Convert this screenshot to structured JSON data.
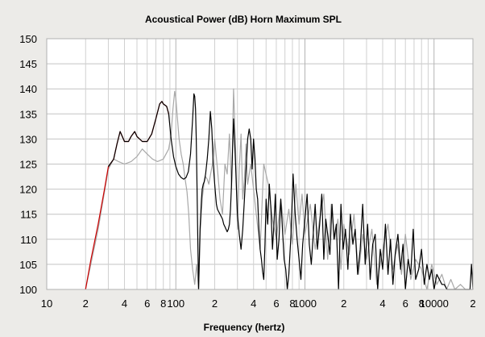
{
  "chart_data": {
    "type": "line",
    "title": "Acoustical Power (dB)   Horn   Maximum SPL",
    "xlabel": "Frequency (hertz)",
    "ylabel": "",
    "xscale": "log",
    "xlim": [
      10,
      20000
    ],
    "ylim": [
      100,
      150
    ],
    "grid": true,
    "y_ticks": [
      100,
      105,
      110,
      115,
      120,
      125,
      130,
      135,
      140,
      145,
      150
    ],
    "x_ticks": [
      {
        "value": 10,
        "label": "10"
      },
      {
        "value": 20,
        "label": "2"
      },
      {
        "value": 40,
        "label": "4"
      },
      {
        "value": 60,
        "label": "6"
      },
      {
        "value": 80,
        "label": "8"
      },
      {
        "value": 100,
        "label": "100"
      },
      {
        "value": 200,
        "label": "2"
      },
      {
        "value": 400,
        "label": "4"
      },
      {
        "value": 600,
        "label": "6"
      },
      {
        "value": 800,
        "label": "8"
      },
      {
        "value": 1000,
        "label": "1000"
      },
      {
        "value": 2000,
        "label": "2"
      },
      {
        "value": 4000,
        "label": "4"
      },
      {
        "value": 6000,
        "label": "6"
      },
      {
        "value": 8000,
        "label": "8"
      },
      {
        "value": 10000,
        "label": "10000"
      },
      {
        "value": 20000,
        "label": "2"
      }
    ],
    "colors": {
      "acoustical_power": "#000000",
      "max_spl": "#cc0000",
      "gray_trace": "#a8a8a8"
    },
    "series": [
      {
        "color": "#a8a8a8",
        "x": [
          20,
          25,
          30,
          33,
          36,
          40,
          45,
          50,
          55,
          60,
          66,
          72,
          80,
          88,
          92,
          95,
          98,
          100,
          103,
          106,
          110,
          114,
          118,
          122,
          126,
          130,
          135,
          140,
          145,
          150,
          155,
          160,
          165,
          170,
          175,
          180,
          186,
          192,
          200,
          210,
          220,
          230,
          240,
          250,
          260,
          270,
          280,
          290,
          300,
          310,
          320,
          330,
          340,
          350,
          360,
          380,
          400,
          420,
          450,
          480,
          520,
          560,
          600,
          650,
          700,
          750,
          800,
          850,
          900,
          950,
          1000,
          1100,
          1200,
          1300,
          1400,
          1500,
          1600,
          1700,
          1800,
          1900,
          2000,
          2200,
          2400,
          2600,
          2800,
          3000,
          3300,
          3600,
          4000,
          4400,
          4800,
          5200,
          5600,
          6000,
          6600,
          7200,
          8000,
          8800,
          9600,
          10500,
          11500,
          12500,
          13500,
          14500,
          16000,
          17500,
          19000,
          20000
        ],
        "y": [
          100,
          112,
          124,
          126,
          125.5,
          125,
          125.5,
          126.5,
          128,
          127,
          126,
          125.5,
          126,
          128,
          131,
          136,
          139.5,
          138,
          134,
          130,
          127,
          125,
          122,
          119.5,
          115,
          108,
          104,
          101,
          105,
          100,
          112,
          118,
          121,
          122.5,
          122,
          121,
          123,
          125,
          130,
          124,
          118,
          115,
          125,
          123,
          131,
          120,
          140,
          128,
          112,
          124,
          131,
          118,
          122,
          129,
          121,
          125,
          120,
          115,
          108,
          125,
          121,
          114,
          110,
          118,
          111,
          116,
          109,
          121,
          113,
          119,
          111,
          117,
          108,
          114,
          119,
          106,
          117,
          110,
          114,
          104,
          113,
          107,
          115,
          103,
          111,
          106,
          112,
          101,
          108,
          113,
          104,
          109,
          103,
          111,
          102,
          106,
          104,
          100,
          105,
          101,
          103,
          100,
          102,
          100,
          101,
          100,
          100,
          100
        ]
      },
      {
        "color": "#cc0000",
        "x": [
          20,
          22,
          25,
          28,
          30,
          33,
          35,
          37,
          40,
          43,
          45,
          48,
          50,
          55,
          60,
          65,
          70,
          75,
          78,
          80,
          85,
          88
        ],
        "y": [
          100,
          106,
          113,
          120,
          124.5,
          126,
          129,
          131.5,
          129.5,
          129.5,
          130.5,
          131.5,
          130.5,
          129.5,
          129.5,
          131,
          134,
          137,
          137.5,
          137,
          136.5,
          135
        ]
      },
      {
        "color": "#000000",
        "x": [
          30,
          33,
          35,
          37,
          40,
          43,
          45,
          48,
          50,
          55,
          60,
          65,
          70,
          75,
          78,
          80,
          85,
          88,
          92,
          96,
          100,
          105,
          110,
          115,
          120,
          125,
          130,
          135,
          138,
          140,
          142,
          144,
          146,
          148,
          150,
          152,
          154,
          156,
          158,
          160,
          163,
          166,
          170,
          175,
          180,
          185,
          190,
          195,
          200,
          203,
          206,
          210,
          215,
          220,
          225,
          230,
          235,
          240,
          245,
          250,
          255,
          260,
          265,
          270,
          275,
          280,
          285,
          290,
          295,
          300,
          310,
          320,
          330,
          340,
          350,
          360,
          370,
          380,
          390,
          400,
          410,
          420,
          430,
          440,
          450,
          460,
          470,
          480,
          490,
          500,
          515,
          530,
          545,
          560,
          575,
          590,
          610,
          630,
          650,
          670,
          690,
          710,
          730,
          750,
          780,
          810,
          840,
          870,
          900,
          930,
          960,
          1000,
          1040,
          1080,
          1120,
          1160,
          1200,
          1250,
          1300,
          1350,
          1400,
          1450,
          1500,
          1560,
          1620,
          1680,
          1750,
          1820,
          1900,
          1980,
          2060,
          2150,
          2250,
          2350,
          2450,
          2560,
          2680,
          2800,
          2930,
          3060,
          3200,
          3350,
          3500,
          3660,
          3830,
          4000,
          4200,
          4400,
          4600,
          4800,
          5000,
          5250,
          5500,
          5750,
          6000,
          6300,
          6600,
          6900,
          7200,
          7600,
          8000,
          8400,
          8800,
          9200,
          9600,
          10000,
          10500,
          11000,
          11500,
          12000,
          12600,
          13200,
          13800,
          14500,
          15200,
          16000,
          17000,
          18000,
          19000,
          19500,
          20000
        ],
        "y": [
          124.5,
          126,
          129,
          131.5,
          129.5,
          129.5,
          130.5,
          131.5,
          130.5,
          129.5,
          129.5,
          131,
          134,
          137,
          137.5,
          137,
          136.5,
          135,
          130,
          126.5,
          124.5,
          123,
          122.3,
          122,
          122.3,
          123.5,
          127,
          134,
          139,
          138.5,
          136,
          130,
          120,
          110,
          100,
          106,
          112,
          115,
          118,
          120,
          121,
          121.5,
          123,
          126,
          130,
          135.5,
          132,
          125,
          121,
          119,
          117,
          116,
          115.5,
          115,
          114.5,
          114,
          113,
          112.5,
          112,
          111.5,
          112,
          113,
          116,
          121,
          128,
          134,
          130,
          125,
          120,
          115,
          111,
          108,
          112,
          118,
          124,
          130,
          132,
          130,
          124,
          130,
          126,
          120,
          118,
          112,
          108,
          106,
          103.5,
          102,
          109,
          118,
          113,
          121,
          116,
          108,
          113,
          119,
          106,
          110,
          118,
          112,
          106,
          104,
          100,
          103,
          111,
          123,
          115,
          110,
          106,
          102,
          109,
          114,
          119,
          109,
          105,
          111,
          117,
          108,
          113,
          119,
          106,
          114,
          111,
          107,
          117,
          110,
          113,
          100,
          117,
          108,
          112,
          104,
          115,
          109,
          112,
          103,
          108,
          117,
          105,
          113,
          102,
          109,
          111,
          100,
          108,
          104,
          113,
          103,
          110,
          101,
          107,
          111,
          104,
          109,
          100,
          106,
          103,
          112,
          102,
          104,
          108,
          101,
          105,
          102,
          104,
          100,
          103,
          102,
          101,
          101,
          100,
          100,
          100,
          100,
          100,
          100,
          100,
          100,
          100,
          105,
          100
        ]
      }
    ]
  }
}
